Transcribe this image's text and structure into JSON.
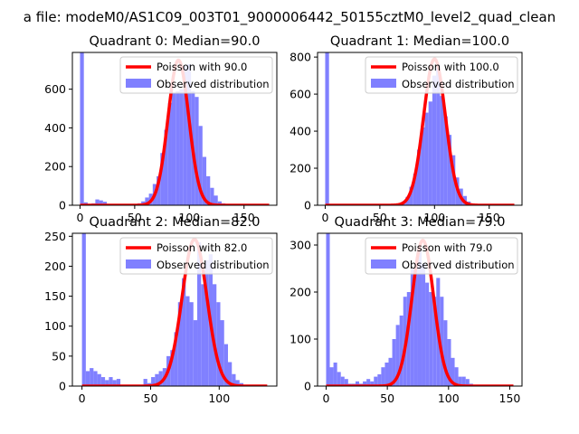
{
  "suptitle": "a file: modeM0/AS1C09_003T01_9000006442_50155cztM0_level2_quad_clean",
  "colors": {
    "observed": "#8080ff",
    "poisson": "#ff0000"
  },
  "chart_data": [
    {
      "type": "bar",
      "title": "Quadrant 0: Median=90.0",
      "xlim": [
        -7,
        180
      ],
      "ylim": [
        0,
        790
      ],
      "xticks": [
        0,
        50,
        100,
        150
      ],
      "yticks": [
        0,
        200,
        400,
        600
      ],
      "bin_width": 3.5,
      "observed": {
        "label": "Observed distribution",
        "bins": [
          0,
          3.5,
          10.5,
          14,
          17.5,
          21,
          52.5,
          56,
          59.5,
          63,
          66.5,
          70,
          73.5,
          77,
          80.5,
          84,
          87.5,
          91,
          94.5,
          98,
          101.5,
          105,
          108.5,
          112,
          115.5,
          119,
          122.5,
          126,
          129.5
        ],
        "counts": [
          790,
          15,
          10,
          30,
          25,
          18,
          10,
          20,
          40,
          60,
          110,
          150,
          270,
          390,
          530,
          580,
          590,
          600,
          720,
          730,
          590,
          560,
          410,
          250,
          150,
          90,
          50,
          20,
          10
        ]
      },
      "poisson": {
        "label": "Poisson with 90.0",
        "mean": 90.0,
        "scale": 750
      }
    },
    {
      "type": "bar",
      "title": "Quadrant 1: Median=100.0",
      "xlim": [
        -7,
        180
      ],
      "ylim": [
        0,
        825
      ],
      "xticks": [
        0,
        50,
        100,
        150
      ],
      "yticks": [
        0,
        200,
        400,
        600,
        800
      ],
      "bin_width": 3.5,
      "observed": {
        "label": "Observed distribution",
        "bins": [
          0,
          70,
          73.5,
          77,
          80.5,
          84,
          87.5,
          91,
          94.5,
          98,
          101.5,
          105,
          108.5,
          112,
          115.5,
          119,
          122.5,
          126,
          129.5,
          133
        ],
        "counts": [
          825,
          20,
          45,
          100,
          170,
          300,
          420,
          500,
          560,
          700,
          760,
          590,
          480,
          380,
          270,
          150,
          90,
          50,
          20,
          10
        ]
      },
      "poisson": {
        "label": "Poisson with 100.0",
        "mean": 100.0,
        "scale": 790
      }
    },
    {
      "type": "bar",
      "title": "Quadrant 2: Median=82.0",
      "xlim": [
        -7,
        142
      ],
      "ylim": [
        0,
        255
      ],
      "xticks": [
        0,
        50,
        100
      ],
      "yticks": [
        0,
        50,
        100,
        150,
        200,
        250
      ],
      "bin_width": 2.8,
      "observed": {
        "label": "Observed distribution",
        "bins": [
          0,
          2.8,
          5.6,
          8.4,
          11.2,
          14,
          16.8,
          19.6,
          22.4,
          25.2,
          44.8,
          47.6,
          50.4,
          53.2,
          56,
          58.8,
          61.6,
          64.4,
          67.2,
          70,
          72.8,
          75.6,
          78.4,
          81.2,
          84,
          86.8,
          89.6,
          92.4,
          95.2,
          98,
          100.8,
          103.6,
          106.4,
          109.2,
          112,
          114.8
        ],
        "counts": [
          255,
          25,
          30,
          25,
          20,
          15,
          10,
          15,
          10,
          12,
          12,
          5,
          15,
          20,
          25,
          30,
          50,
          60,
          90,
          140,
          180,
          150,
          140,
          110,
          240,
          170,
          210,
          220,
          170,
          140,
          110,
          70,
          40,
          20,
          10,
          5
        ]
      },
      "poisson": {
        "label": "Poisson with 82.0",
        "mean": 82.0,
        "scale": 245
      }
    },
    {
      "type": "bar",
      "title": "Quadrant 3: Median=79.0",
      "xlim": [
        -7,
        160
      ],
      "ylim": [
        0,
        325
      ],
      "xticks": [
        0,
        50,
        100,
        150
      ],
      "yticks": [
        0,
        100,
        200,
        300
      ],
      "bin_width": 3,
      "observed": {
        "label": "Observed distribution",
        "bins": [
          0,
          3,
          6,
          9,
          12,
          15,
          18,
          21,
          24,
          27,
          30,
          33,
          36,
          39,
          42,
          45,
          48,
          51,
          54,
          57,
          60,
          63,
          66,
          69,
          72,
          75,
          78,
          81,
          84,
          87,
          90,
          93,
          96,
          99,
          102,
          105,
          108,
          111,
          114,
          117
        ],
        "counts": [
          325,
          40,
          50,
          30,
          20,
          15,
          5,
          5,
          10,
          5,
          10,
          15,
          10,
          20,
          25,
          40,
          50,
          60,
          100,
          130,
          150,
          190,
          200,
          250,
          260,
          290,
          260,
          220,
          200,
          190,
          230,
          190,
          140,
          100,
          60,
          40,
          20,
          20,
          15,
          5
        ]
      },
      "poisson": {
        "label": "Poisson with 79.0",
        "mean": 79.0,
        "scale": 310
      }
    }
  ]
}
